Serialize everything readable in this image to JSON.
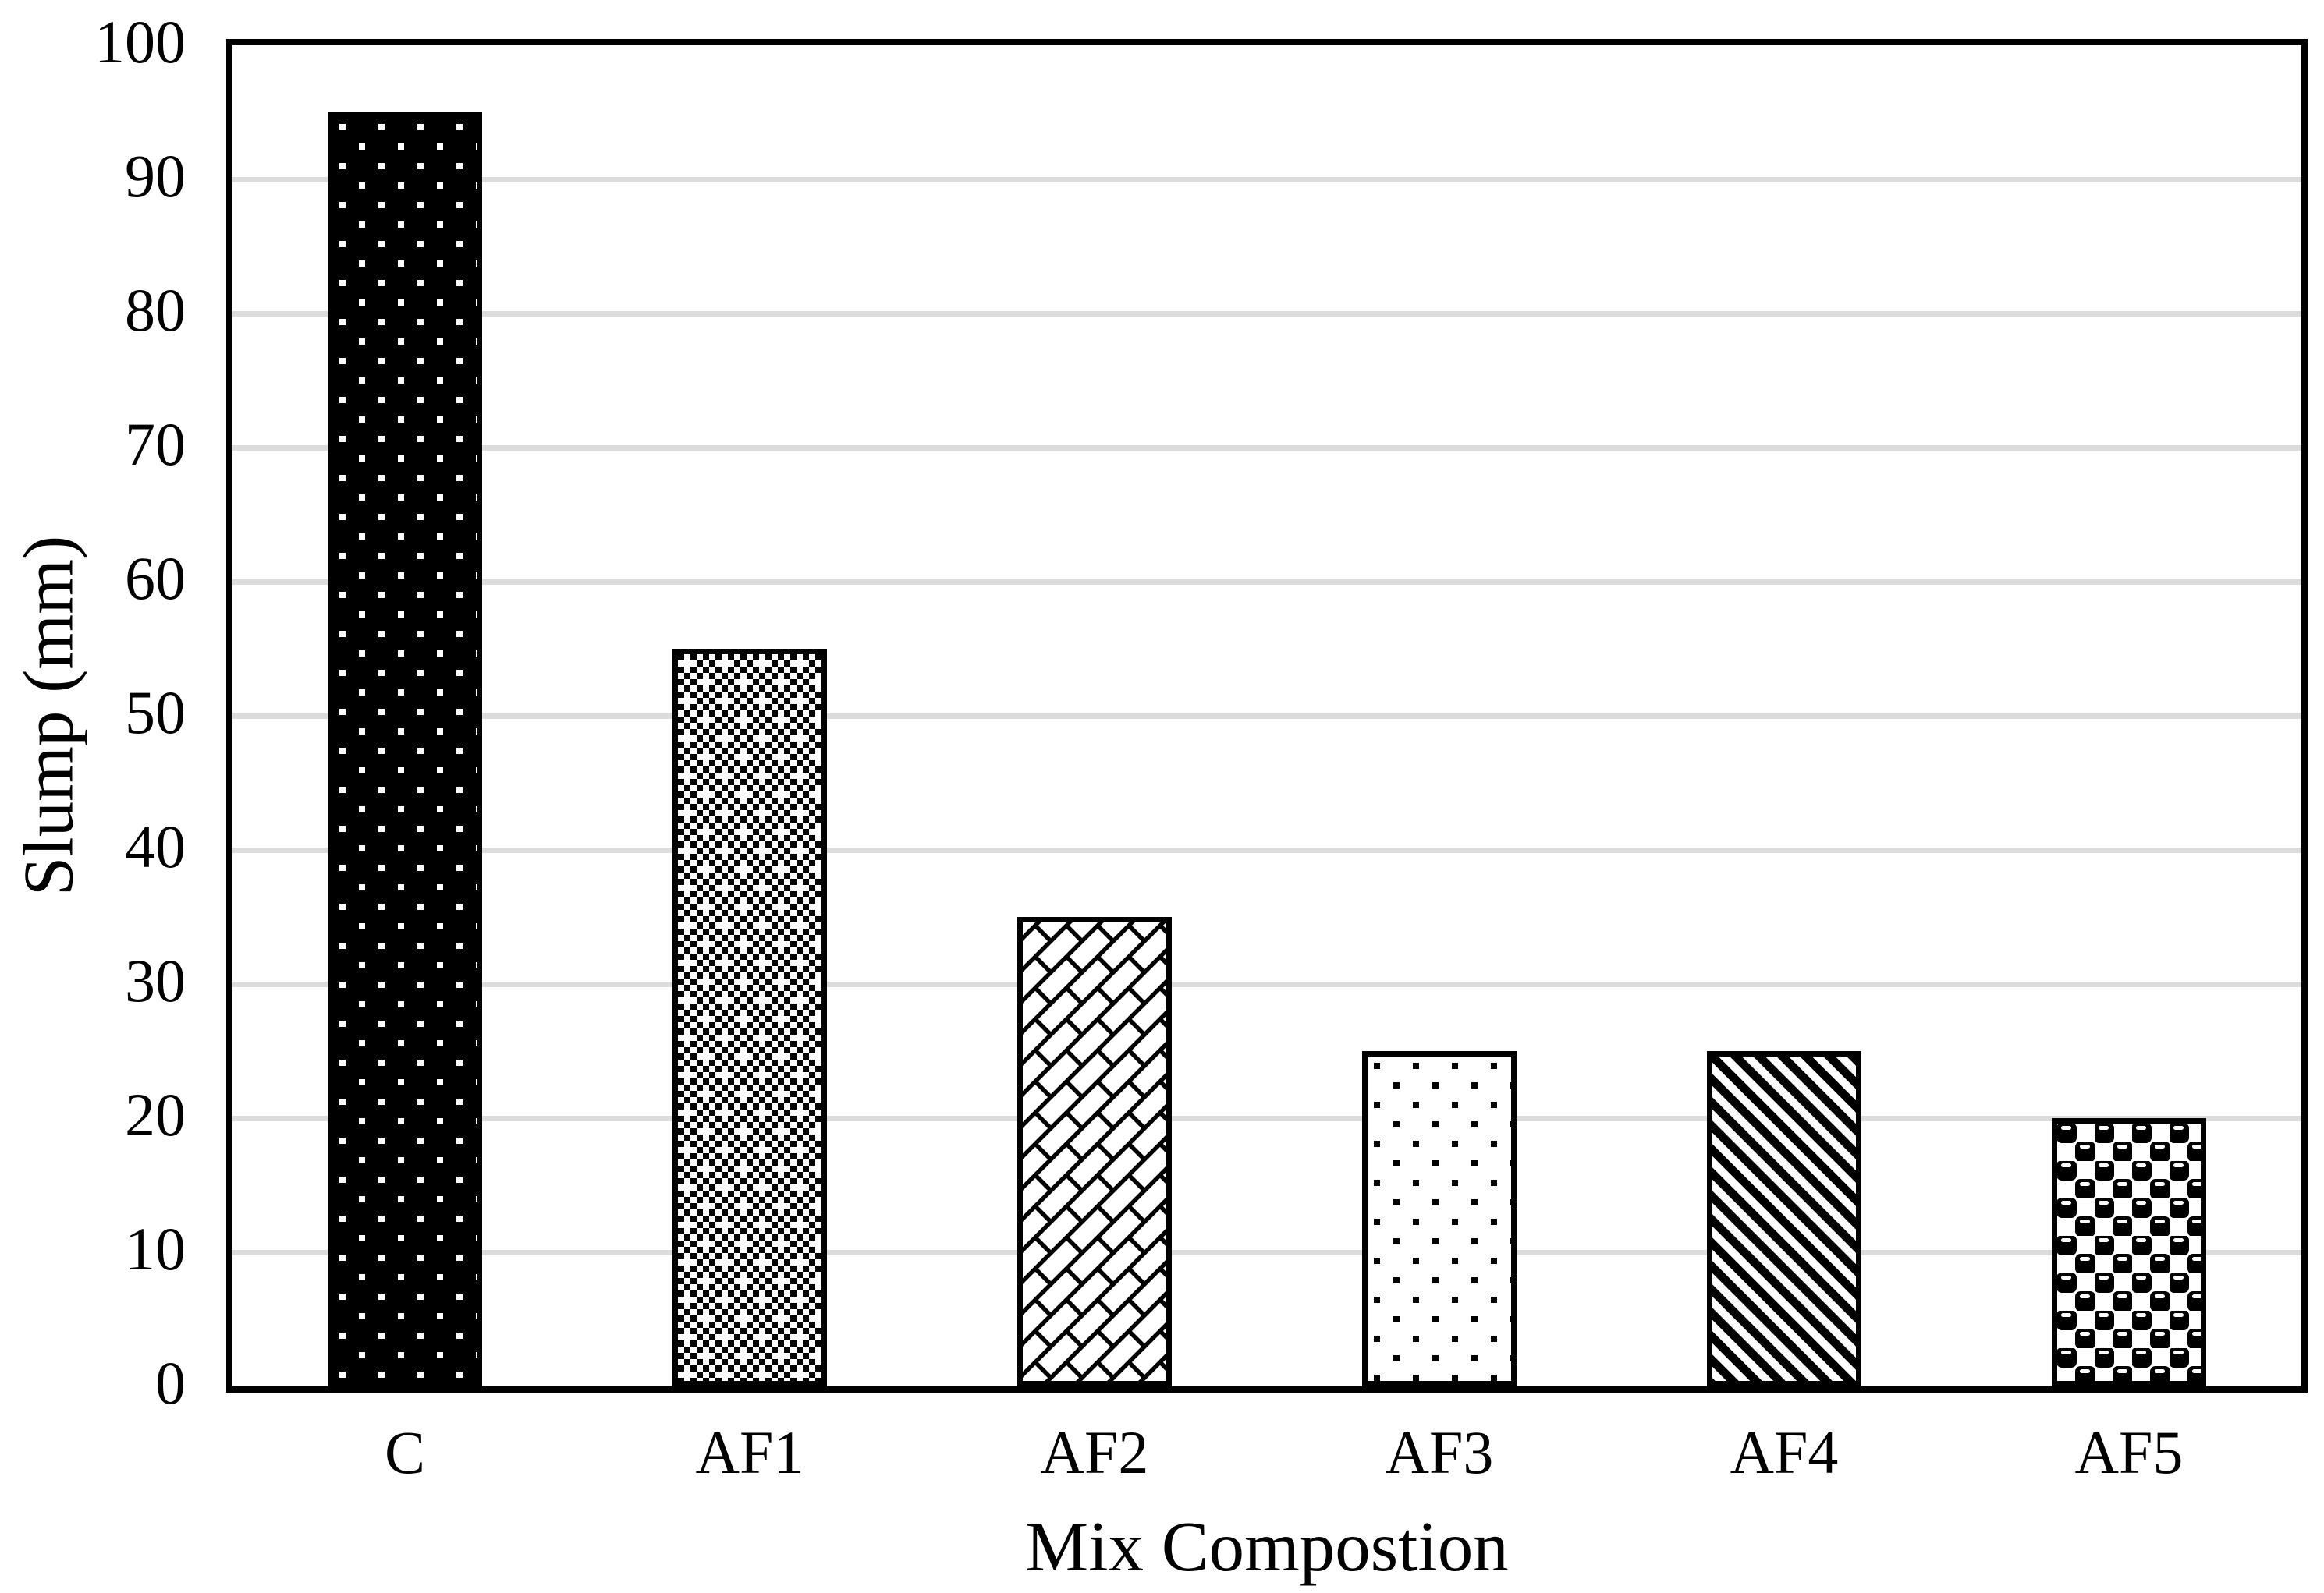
{
  "chart_data": {
    "type": "bar",
    "title": "",
    "xlabel": "Mix Compostion",
    "ylabel": "Slump (mm)",
    "categories": [
      "C",
      "AF1",
      "AF2",
      "AF3",
      "AF4",
      "AF5"
    ],
    "values": [
      95,
      55,
      35,
      25,
      25,
      20
    ],
    "series": [
      {
        "name": "Slump",
        "values": [
          95,
          55,
          35,
          25,
          25,
          20
        ]
      }
    ],
    "ylim": [
      0,
      100
    ],
    "ytick_step": 10,
    "ytick_labels": [
      "0",
      "10",
      "20",
      "30",
      "40",
      "50",
      "60",
      "70",
      "80",
      "90",
      "100"
    ],
    "grid": "horizontal-gridlines-on",
    "legend": "none",
    "bar_patterns": [
      "white-dots-on-black",
      "fine-checker-with-crosses",
      "diagonal-brick",
      "black-dots-on-white",
      "thick-diagonal-stripes",
      "coarse-checker"
    ],
    "colors": {
      "bar_fill_foreground": "#000000",
      "bar_outline": "#000000",
      "gridline": "#dcdcdc",
      "axis_frame": "#000000",
      "background": "#ffffff",
      "text": "#000000"
    }
  }
}
